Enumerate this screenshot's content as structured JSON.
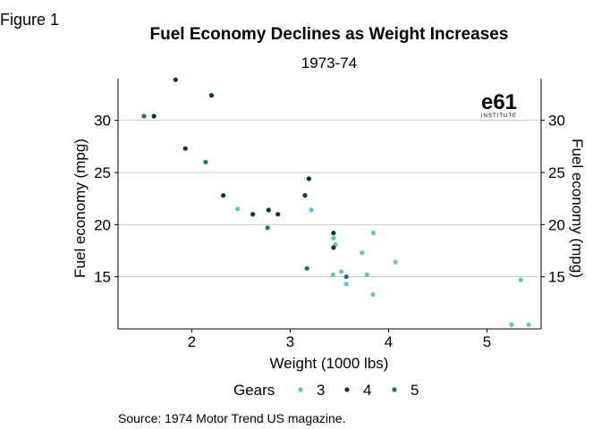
{
  "figure_label": "Figure 1",
  "source_note": "Source: 1974 Motor Trend US magazine.",
  "logo": {
    "main": "e61",
    "sub": "INSTITUTE"
  },
  "colors": {
    "gear3": "#5cc6d0",
    "gear4": "#003a45",
    "gear5": "#127870",
    "grid": "#cccccc",
    "axis": "#000000"
  },
  "chart_data": {
    "type": "scatter",
    "title": "Fuel Economy Declines as Weight Increases",
    "subtitle": "1973-74",
    "xlabel": "Weight (1000 lbs)",
    "ylabel": "Fuel economy (mpg)",
    "ylabel_right": "Fuel economy (mpg)",
    "xlim": [
      1.25,
      5.55
    ],
    "ylim": [
      10.0,
      34.0
    ],
    "xticks": [
      2,
      3,
      4,
      5
    ],
    "yticks": [
      15,
      20,
      25,
      30
    ],
    "grid": "horizontal",
    "legend": {
      "title": "Gears",
      "placement": "bottom"
    },
    "series": [
      {
        "name": "3",
        "color": "#5cc6d0",
        "points": [
          [
            2.465,
            21.5
          ],
          [
            3.215,
            21.4
          ],
          [
            3.44,
            18.7
          ],
          [
            3.46,
            18.1
          ],
          [
            3.57,
            14.3
          ],
          [
            4.07,
            16.4
          ],
          [
            3.73,
            17.3
          ],
          [
            3.78,
            15.2
          ],
          [
            5.25,
            10.4
          ],
          [
            5.424,
            10.4
          ],
          [
            5.345,
            14.7
          ],
          [
            3.52,
            15.5
          ],
          [
            3.435,
            15.2
          ],
          [
            3.84,
            13.3
          ],
          [
            3.845,
            19.2
          ]
        ]
      },
      {
        "name": "4",
        "color": "#003a45",
        "points": [
          [
            2.62,
            21.0
          ],
          [
            2.875,
            21.0
          ],
          [
            2.32,
            22.8
          ],
          [
            3.19,
            24.4
          ],
          [
            3.15,
            22.8
          ],
          [
            3.44,
            19.2
          ],
          [
            3.44,
            17.8
          ],
          [
            2.2,
            32.4
          ],
          [
            1.615,
            30.4
          ],
          [
            1.835,
            33.9
          ],
          [
            1.935,
            27.3
          ],
          [
            2.78,
            21.4
          ]
        ]
      },
      {
        "name": "5",
        "color": "#127870",
        "points": [
          [
            2.14,
            26.0
          ],
          [
            1.513,
            30.4
          ],
          [
            3.17,
            15.8
          ],
          [
            2.77,
            19.7
          ],
          [
            3.57,
            15.0
          ]
        ]
      }
    ]
  }
}
